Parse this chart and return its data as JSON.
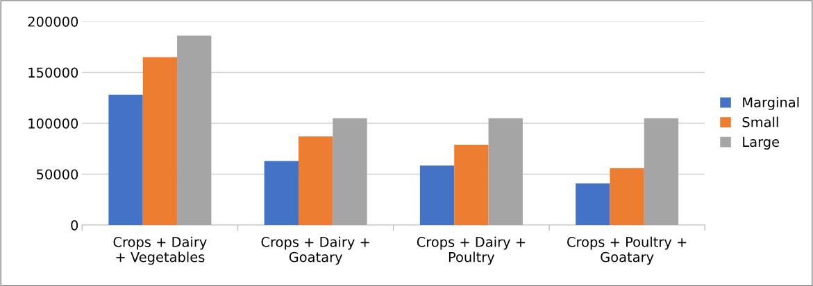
{
  "chart_data": {
    "type": "bar",
    "categories": [
      "Crops + Dairy\n+ Vegetables",
      "Crops + Dairy +\nGoatary",
      "Crops + Dairy +\nPoultry",
      "Crops + Poultry +\nGoatary"
    ],
    "series": [
      {
        "name": "Marginal",
        "color": "#4472c4",
        "values": [
          128000,
          63000,
          58500,
          41000
        ]
      },
      {
        "name": "Small",
        "color": "#ed7d31",
        "values": [
          165000,
          87000,
          79000,
          56000
        ]
      },
      {
        "name": "Large",
        "color": "#a5a5a5",
        "values": [
          186000,
          105000,
          105000,
          105000
        ]
      }
    ],
    "ylim": [
      0,
      200000
    ],
    "yticks": [
      0,
      50000,
      100000,
      150000,
      200000
    ],
    "grid": "y",
    "legend": "right"
  }
}
